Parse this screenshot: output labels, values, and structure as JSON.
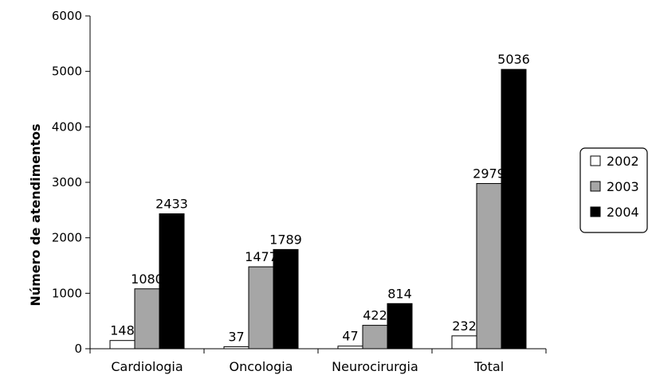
{
  "chart_data": {
    "type": "bar",
    "title": "",
    "xlabel": "",
    "ylabel": "Número de atendimentos",
    "ylim": [
      0,
      6000
    ],
    "yticks": [
      0,
      1000,
      2000,
      3000,
      4000,
      5000,
      6000
    ],
    "categories": [
      "Cardiologia",
      "Oncologia",
      "Neurocirurgia",
      "Total"
    ],
    "series": [
      {
        "name": "2002",
        "color": "#ffffff",
        "values": [
          148,
          37,
          47,
          232
        ]
      },
      {
        "name": "2003",
        "color": "#a6a6a6",
        "values": [
          1080,
          1477,
          422,
          2979
        ]
      },
      {
        "name": "2004",
        "color": "#000000",
        "values": [
          2433,
          1789,
          814,
          5036
        ]
      }
    ],
    "grid": false,
    "legend_position": "right"
  }
}
